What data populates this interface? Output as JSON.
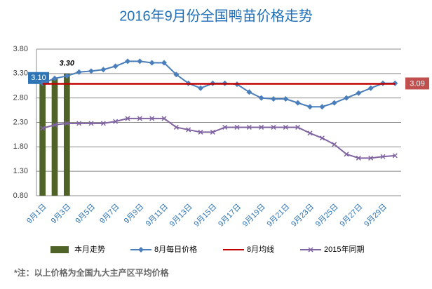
{
  "chart_data": {
    "type": "line",
    "title": "2016年9月份全国鸭苗价格走势",
    "note": "*注：以上价格为全国九大主产区平均价格",
    "categories": [
      "9月1日",
      null,
      "9月3日",
      null,
      "9月5日",
      null,
      "9月7日",
      null,
      "9月9日",
      null,
      "9月11日",
      null,
      "9月13日",
      null,
      "9月15日",
      null,
      "9月17日",
      null,
      "9月19日",
      null,
      "9月21日",
      null,
      "9月23日",
      null,
      "9月25日",
      null,
      "9月27日",
      null,
      "9月29日",
      null
    ],
    "ylim": [
      0.8,
      3.8
    ],
    "yticks": [
      {
        "value": 0.8,
        "label": "0.80"
      },
      {
        "value": 1.3,
        "label": "1.30"
      },
      {
        "value": 1.8,
        "label": "1.80"
      },
      {
        "value": 2.3,
        "label": "2.30"
      },
      {
        "value": 2.8,
        "label": "2.80"
      },
      {
        "value": 3.3,
        "label": "3.30"
      },
      {
        "value": 3.8,
        "label": "3.80"
      }
    ],
    "grid": true,
    "legend": "bottom",
    "series": [
      {
        "name": "本月走势",
        "type": "bar",
        "color": "#4f6228",
        "values": [
          3.1,
          3.2,
          3.3,
          null,
          null,
          null,
          null,
          null,
          null,
          null,
          null,
          null,
          null,
          null,
          null,
          null,
          null,
          null,
          null,
          null,
          null,
          null,
          null,
          null,
          null,
          null,
          null,
          null,
          null,
          null
        ],
        "value_labels": [
          "3.10",
          null,
          "3.30",
          null,
          null,
          null,
          null,
          null,
          null,
          null,
          null,
          null,
          null,
          null,
          null,
          null,
          null,
          null,
          null,
          null,
          null,
          null,
          null,
          null,
          null,
          null,
          null,
          null,
          null,
          null
        ]
      },
      {
        "name": "8月每日价格",
        "type": "line",
        "marker": "diamond",
        "color": "#4a7ebb",
        "values": [
          3.1,
          3.2,
          3.25,
          3.33,
          3.35,
          3.38,
          3.45,
          3.55,
          3.55,
          3.52,
          3.52,
          3.28,
          3.1,
          3.0,
          3.1,
          3.1,
          3.08,
          2.92,
          2.8,
          2.78,
          2.78,
          2.7,
          2.62,
          2.62,
          2.7,
          2.8,
          2.9,
          3.0,
          3.1,
          3.1
        ]
      },
      {
        "name": "8月均线",
        "type": "line",
        "marker": "none",
        "color": "#c00000",
        "values": [
          3.09,
          3.09,
          3.09,
          3.09,
          3.09,
          3.09,
          3.09,
          3.09,
          3.09,
          3.09,
          3.09,
          3.09,
          3.09,
          3.09,
          3.09,
          3.09,
          3.09,
          3.09,
          3.09,
          3.09,
          3.09,
          3.09,
          3.09,
          3.09,
          3.09,
          3.09,
          3.09,
          3.09,
          3.09,
          3.09
        ],
        "label_index": 29
      },
      {
        "name": "2015年同期",
        "type": "line",
        "marker": "x",
        "color": "#8064a2",
        "values": [
          2.18,
          2.25,
          2.28,
          2.28,
          2.28,
          2.28,
          2.32,
          2.38,
          2.38,
          2.38,
          2.38,
          2.2,
          2.15,
          2.1,
          2.1,
          2.2,
          2.2,
          2.2,
          2.2,
          2.2,
          2.2,
          2.2,
          2.08,
          1.98,
          1.85,
          1.65,
          1.57,
          1.57,
          1.6,
          1.62
        ]
      }
    ]
  }
}
